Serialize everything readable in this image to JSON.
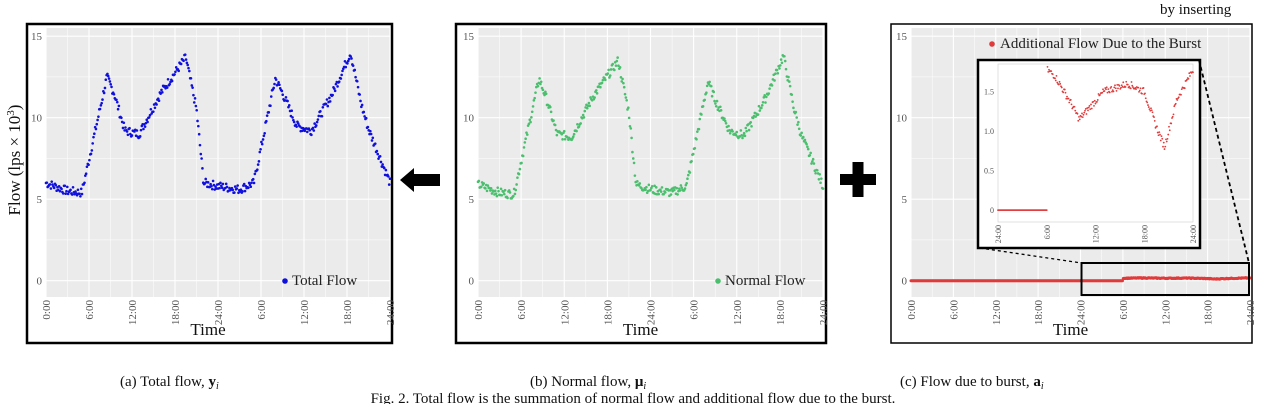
{
  "top_right_fragment": "by inserting",
  "figure_caption": "Fig. 2. Total flow is the summation of normal flow and additional flow due to the burst.",
  "panels": [
    {
      "caption": "(a) Total flow, ",
      "caption_var": "y",
      "caption_sub": "i"
    },
    {
      "caption": "(b) Normal flow, ",
      "caption_var": "μ",
      "caption_sub": "i"
    },
    {
      "caption": "(c) Flow due to burst, ",
      "caption_var": "a",
      "caption_sub": "i"
    }
  ],
  "colors": {
    "total": "#1010dd",
    "normal": "#4cbf6f",
    "burst": "#e03a3a",
    "plot_bg": "#ebebeb",
    "grid": "#ffffff"
  },
  "operators": {
    "arrow": "left-arrow-icon",
    "plus": "plus-icon"
  },
  "chart_data": [
    {
      "type": "scatter",
      "title": "",
      "ylabel": "Flow (lps × 10",
      "ylabel_sup": "3",
      "ylabel_close": ")",
      "xlabel": "Time",
      "ylim": [
        -1,
        15.5
      ],
      "yticks": [
        "0",
        "5",
        "10",
        "15"
      ],
      "xticks": [
        "0:00",
        "6:00",
        "12:00",
        "18:00",
        "24:00",
        "6:00",
        "12:00",
        "18:00",
        "24:00"
      ],
      "grid": true,
      "legend": {
        "label": "Total Flow",
        "position": "bottom-right"
      },
      "series": [
        {
          "name": "Total Flow",
          "color": "#1010dd",
          "keypoints_x_hours": [
            0,
            3,
            5,
            8.5,
            9.5,
            11,
            13,
            16,
            19.5,
            21,
            22,
            24,
            27,
            29,
            32,
            33,
            35,
            37,
            40,
            42.5,
            44,
            45,
            48
          ],
          "keypoints_y": [
            6.0,
            5.5,
            5.4,
            12.5,
            11.5,
            9.2,
            9.0,
            11.5,
            13.7,
            10.5,
            6.0,
            5.8,
            5.6,
            6.0,
            12.4,
            11.5,
            9.5,
            9.2,
            11.5,
            14.0,
            10.8,
            9.3,
            6.0
          ]
        }
      ]
    },
    {
      "type": "scatter",
      "title": "",
      "xlabel": "Time",
      "ylim": [
        -1,
        15.5
      ],
      "yticks": [
        "0",
        "5",
        "10",
        "15"
      ],
      "xticks": [
        "0:00",
        "6:00",
        "12:00",
        "18:00",
        "24:00",
        "6:00",
        "12:00",
        "18:00",
        "24:00"
      ],
      "grid": true,
      "legend": {
        "label": "Normal Flow",
        "position": "bottom-right"
      },
      "series": [
        {
          "name": "Normal Flow",
          "color": "#4cbf6f",
          "keypoints_x_hours": [
            0,
            3,
            5,
            8.5,
            9.5,
            11,
            13,
            16,
            19.5,
            21,
            22,
            24,
            27,
            29,
            32,
            33,
            35,
            37,
            40,
            42.5,
            44,
            45,
            48
          ],
          "keypoints_y": [
            5.9,
            5.4,
            5.3,
            12.4,
            11.2,
            9.0,
            8.8,
            11.3,
            13.5,
            10.3,
            5.9,
            5.6,
            5.4,
            5.8,
            12.2,
            11.1,
            9.2,
            8.9,
            11.2,
            13.8,
            10.5,
            8.9,
            5.8
          ]
        }
      ]
    },
    {
      "type": "scatter",
      "title": "",
      "xlabel": "Time",
      "ylim": [
        -1,
        15.5
      ],
      "yticks": [
        "0",
        "5",
        "10",
        "15"
      ],
      "xticks": [
        "0:00",
        "6:00",
        "12:00",
        "18:00",
        "24:00",
        "6:00",
        "12:00",
        "18:00",
        "24:00"
      ],
      "grid": true,
      "legend": {
        "label": "Additional Flow Due to the Burst",
        "position": "top-right"
      },
      "series": [
        {
          "name": "Additional Flow Due to the Burst",
          "color": "#e03a3a",
          "keypoints_x_hours": [
            0,
            30,
            30.01,
            33,
            36,
            39,
            42,
            43,
            45,
            48
          ],
          "keypoints_y": [
            0,
            0,
            0.15,
            0.17,
            0.15,
            0.16,
            0.13,
            0.1,
            0.14,
            0.17
          ]
        }
      ],
      "inset": {
        "ylim": [
          -0.15,
          1.85
        ],
        "yticks": [
          "0",
          "0.5",
          "1.0",
          "1.5"
        ],
        "xticks": [
          "24:00",
          "6:00",
          "12:00",
          "18:00",
          "24:00"
        ],
        "keypoints_x_hours": [
          0,
          6,
          6.01,
          7,
          9,
          10,
          13,
          16,
          18,
          19.5,
          20.5,
          22,
          24
        ],
        "keypoints_y": [
          0,
          0,
          1.78,
          1.7,
          1.35,
          1.15,
          1.5,
          1.6,
          1.5,
          1.05,
          0.8,
          1.4,
          1.78
        ]
      }
    }
  ]
}
